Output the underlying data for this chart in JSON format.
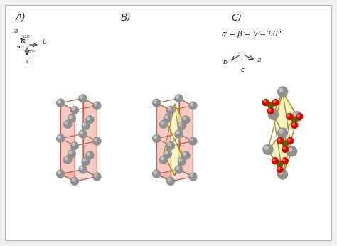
{
  "bg_color": "#f0f0f0",
  "panel_bg": "#ffffff",
  "label_A": "A)",
  "label_B": "B)",
  "label_C": "C)",
  "pink_face_color": "#f0a090",
  "pink_face_alpha": 0.55,
  "yellow_face_color": "#f5f0b0",
  "yellow_face_alpha": 0.55,
  "edge_color_pink": "#c06050",
  "edge_color_yellow": "#b09020",
  "atom_gray_color": "#909090",
  "atom_gray_light": "#c0c0c0",
  "atom_red_color": "#cc1100",
  "atom_green_color": "#556600",
  "axis_text_color": "#333333",
  "angle_eq_text": "α = β = γ = 60°",
  "ox_A": 105,
  "oy_A": 155,
  "ox_B": 240,
  "oy_B": 155,
  "ox_C": 390,
  "oy_C": 140,
  "sa": 32,
  "sc": 50,
  "sa_C": 42,
  "sc_C": 58
}
